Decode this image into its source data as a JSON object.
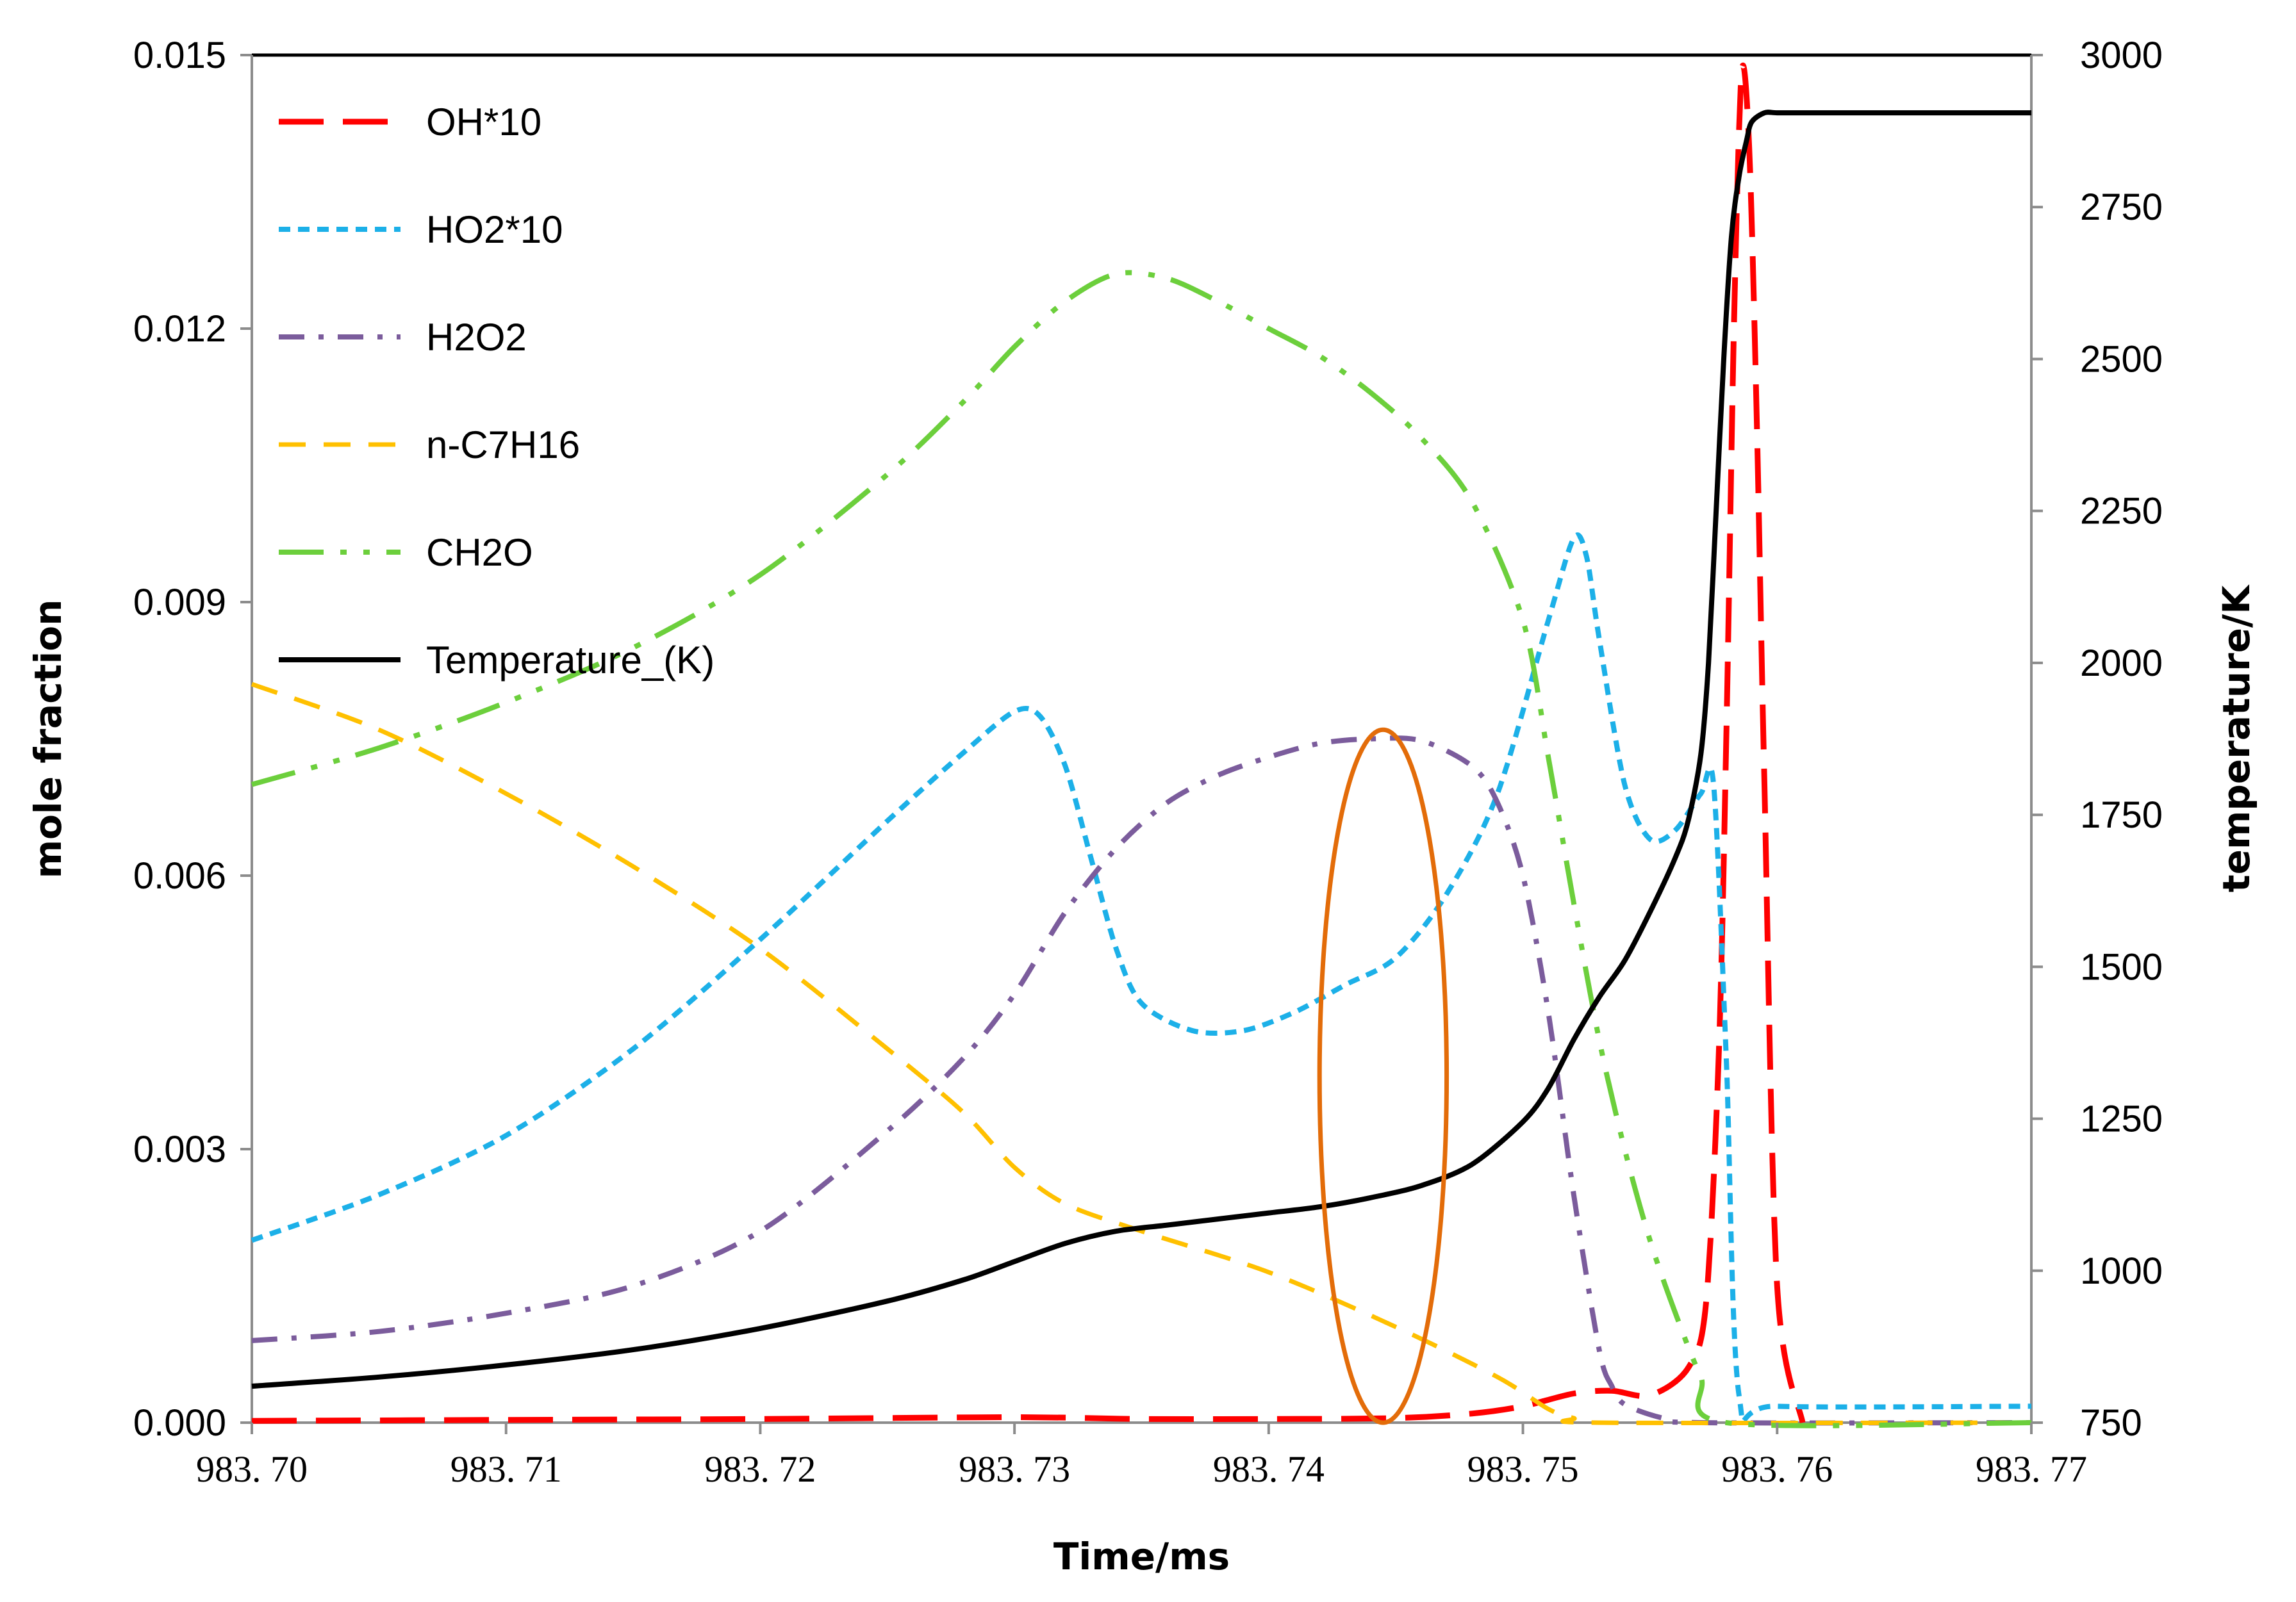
{
  "chart_data": {
    "type": "line",
    "title": "",
    "xlabel": "Time/ms",
    "ylabel_left": "mole fraction",
    "ylabel_right": "temperature/K",
    "xlim": [
      983.7,
      983.77
    ],
    "ylim_left": [
      0.0,
      0.015
    ],
    "ylim_right": [
      750,
      3000
    ],
    "x_ticks": [
      "983. 70",
      "983. 71",
      "983. 72",
      "983. 73",
      "983. 74",
      "983. 75",
      "983. 76",
      "983. 77"
    ],
    "x_tick_values": [
      983.7,
      983.71,
      983.72,
      983.73,
      983.74,
      983.75,
      983.76,
      983.77
    ],
    "y_left_ticks": [
      "0.000",
      "0.003",
      "0.006",
      "0.009",
      "0.012",
      "0.015"
    ],
    "y_left_tick_values": [
      0.0,
      0.003,
      0.006,
      0.009,
      0.012,
      0.015
    ],
    "y_right_ticks": [
      "750",
      "1000",
      "1250",
      "1500",
      "1750",
      "2000",
      "2250",
      "2500",
      "2750",
      "3000"
    ],
    "y_right_tick_values": [
      750,
      1000,
      1250,
      1500,
      1750,
      2000,
      2250,
      2500,
      2750,
      3000
    ],
    "grid": false,
    "legend_position": "top-left",
    "series": [
      {
        "name": "OH*10",
        "axis": "left",
        "color": "#ff0000",
        "dash": "long-dash",
        "x": [
          983.7,
          983.71,
          983.72,
          983.73,
          983.735,
          983.74,
          983.745,
          983.748,
          983.75,
          983.752,
          983.7535,
          983.755,
          983.7565,
          983.7572,
          983.7577,
          983.758,
          983.7583,
          983.7586,
          983.7589,
          983.7592,
          983.7595,
          983.76,
          983.761
        ],
        "values": [
          2e-05,
          3e-05,
          4e-05,
          6e-05,
          4e-05,
          4e-05,
          5e-05,
          0.0001,
          0.00018,
          0.00032,
          0.00035,
          0.0003,
          0.0006,
          0.0013,
          0.004,
          0.0075,
          0.012,
          0.0148,
          0.014,
          0.011,
          0.007,
          0.0015,
          0.0
        ]
      },
      {
        "name": "HO2*10",
        "axis": "left",
        "color": "#1cb0e8",
        "dash": "short-dash",
        "x": [
          983.7,
          983.705,
          983.71,
          983.715,
          983.72,
          983.725,
          983.728,
          983.73,
          983.731,
          983.732,
          983.733,
          983.734,
          983.735,
          983.737,
          983.739,
          983.741,
          983.743,
          983.745,
          983.747,
          983.749,
          983.751,
          983.752,
          983.7525,
          983.753,
          983.754,
          983.755,
          983.756,
          983.757,
          983.7575,
          983.758,
          983.7585,
          983.76,
          983.77
        ],
        "values": [
          0.002,
          0.0025,
          0.00315,
          0.0041,
          0.0053,
          0.0066,
          0.00735,
          0.0078,
          0.00775,
          0.0072,
          0.0062,
          0.0052,
          0.0046,
          0.0043,
          0.0043,
          0.0045,
          0.0048,
          0.0051,
          0.0058,
          0.0069,
          0.0088,
          0.0097,
          0.0095,
          0.0086,
          0.007,
          0.0064,
          0.0065,
          0.0069,
          0.007,
          0.004,
          0.0003,
          0.00018,
          0.00018
        ]
      },
      {
        "name": "H2O2",
        "axis": "left",
        "color": "#7b5c9c",
        "dash": "dash-dot",
        "x": [
          983.7,
          983.705,
          983.71,
          983.715,
          983.72,
          983.725,
          983.728,
          983.73,
          983.732,
          983.734,
          983.736,
          983.738,
          983.74,
          983.742,
          983.744,
          983.746,
          983.748,
          983.749,
          983.75,
          983.751,
          983.752,
          983.753,
          983.7535,
          983.754,
          983.7555,
          983.757,
          983.77
        ],
        "values": [
          0.0009,
          0.001,
          0.0012,
          0.0015,
          0.0021,
          0.0032,
          0.004,
          0.0047,
          0.0056,
          0.0063,
          0.0068,
          0.0071,
          0.0073,
          0.00745,
          0.0075,
          0.00748,
          0.0072,
          0.0068,
          0.006,
          0.0045,
          0.0025,
          0.0008,
          0.0004,
          0.0002,
          5e-05,
          0.0,
          0.0
        ]
      },
      {
        "name": "n-C7H16",
        "axis": "left",
        "color": "#ffc000",
        "dash": "dash",
        "x": [
          983.7,
          983.705,
          983.71,
          983.715,
          983.72,
          983.725,
          983.728,
          983.73,
          983.732,
          983.735,
          983.74,
          983.745,
          983.749,
          983.751,
          983.752,
          983.753,
          983.77
        ],
        "values": [
          0.0081,
          0.0076,
          0.0069,
          0.0061,
          0.0052,
          0.0041,
          0.0034,
          0.0028,
          0.0024,
          0.0021,
          0.00165,
          0.00105,
          0.0005,
          0.00015,
          5e-05,
          0.0,
          0.0
        ]
      },
      {
        "name": "CH2O",
        "axis": "left",
        "color": "#6ccf3c",
        "dash": "dash-dot-dot",
        "x": [
          983.7,
          983.705,
          983.71,
          983.715,
          983.72,
          983.725,
          983.728,
          983.73,
          983.732,
          983.734,
          983.736,
          983.738,
          983.74,
          983.742,
          983.744,
          983.746,
          983.748,
          983.75,
          983.751,
          983.752,
          983.753,
          983.754,
          983.755,
          983.756,
          983.757,
          983.758,
          983.77
        ],
        "values": [
          0.007,
          0.0074,
          0.0079,
          0.0085,
          0.0093,
          0.0104,
          0.0112,
          0.0118,
          0.0123,
          0.0126,
          0.01255,
          0.0123,
          0.012,
          0.0117,
          0.0113,
          0.0108,
          0.0101,
          0.0088,
          0.0073,
          0.0057,
          0.0042,
          0.003,
          0.002,
          0.0012,
          0.0005,
          0.0,
          0.0
        ]
      },
      {
        "name": "Temperature_(K)",
        "axis": "right",
        "color": "#000000",
        "dash": "solid",
        "x": [
          983.7,
          983.705,
          983.71,
          983.715,
          983.72,
          983.725,
          983.728,
          983.73,
          983.732,
          983.734,
          983.736,
          983.738,
          983.74,
          983.742,
          983.744,
          983.746,
          983.748,
          983.75,
          983.751,
          983.752,
          983.753,
          983.754,
          983.755,
          983.756,
          983.7565,
          983.757,
          983.7573,
          983.7576,
          983.7579,
          983.7582,
          983.7585,
          983.7588,
          983.759,
          983.7595,
          983.76,
          983.761,
          983.77
        ],
        "values": [
          810,
          825,
          845,
          870,
          905,
          950,
          985,
          1015,
          1045,
          1065,
          1075,
          1085,
          1095,
          1105,
          1120,
          1140,
          1175,
          1245,
          1300,
          1380,
          1450,
          1510,
          1590,
          1680,
          1740,
          1850,
          2000,
          2250,
          2500,
          2700,
          2800,
          2860,
          2890,
          2905,
          2905,
          2905,
          2905
        ]
      }
    ],
    "annotations": [
      {
        "type": "ellipse",
        "color": "#e36c09",
        "x_center": 983.7445,
        "y_center_left": 0.0038,
        "x_half_width": 0.0025,
        "y_half_height_left": 0.0038
      }
    ]
  }
}
